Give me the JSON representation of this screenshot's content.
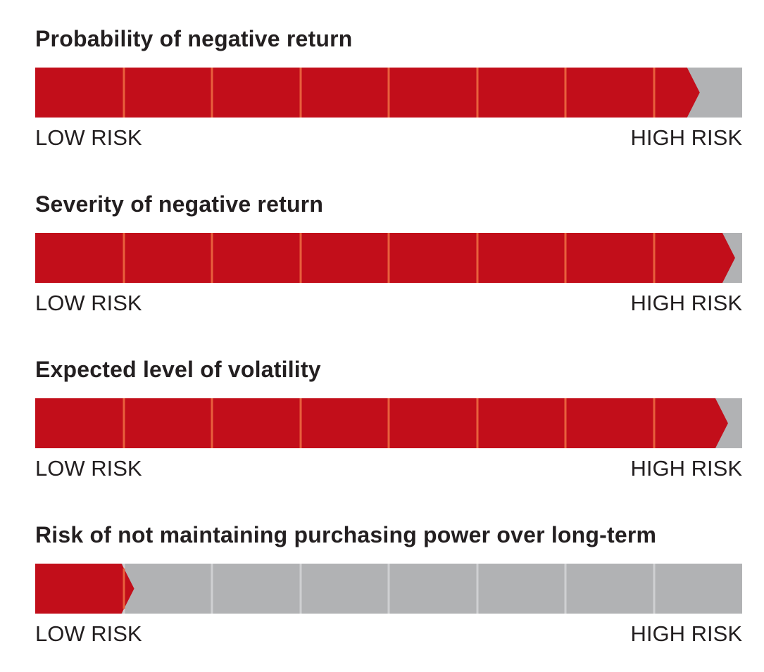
{
  "colors": {
    "fill": "#c20e1a",
    "track": "#b1b2b4",
    "fill_divider": "#e8603c",
    "track_divider": "#cfd0d2",
    "text": "#231f20"
  },
  "scale": {
    "segments": 8,
    "low_label": "LOW RISK",
    "high_label": "HIGH RISK"
  },
  "chart_data": {
    "type": "gauge",
    "value_unit": "fraction of scale from low to high risk",
    "meters": [
      {
        "title": "Probability of negative return",
        "value": 0.94
      },
      {
        "title": "Severity of negative return",
        "value": 0.99
      },
      {
        "title": "Expected level of volatility",
        "value": 0.98
      },
      {
        "title": "Risk of not maintaining purchasing power over long-term",
        "value": 0.14
      }
    ]
  }
}
